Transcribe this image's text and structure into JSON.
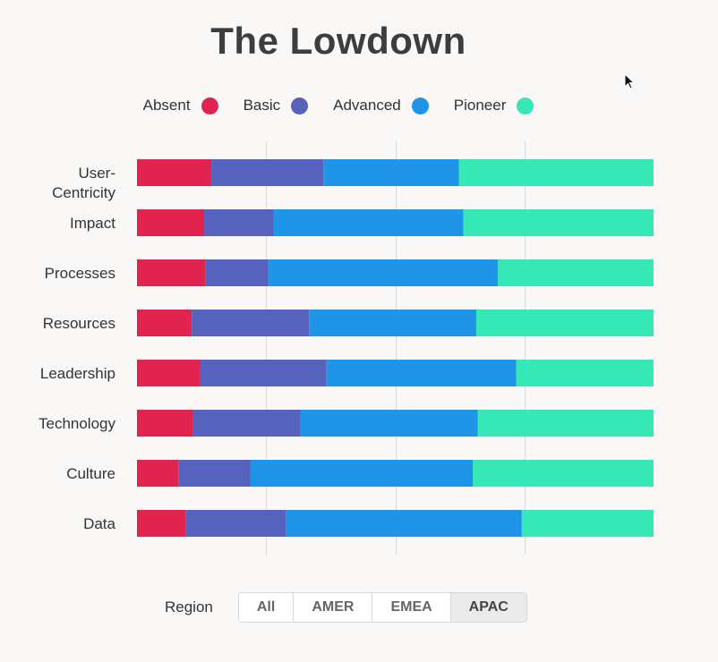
{
  "title": "The Lowdown",
  "legend": [
    {
      "label": "Absent",
      "color": "#e0244f"
    },
    {
      "label": "Basic",
      "color": "#5762bd"
    },
    {
      "label": "Advanced",
      "color": "#1e95e6"
    },
    {
      "label": "Pioneer",
      "color": "#35e8b6"
    }
  ],
  "chart_data": {
    "type": "bar",
    "orientation": "horizontal",
    "stacked": true,
    "normalized": true,
    "categories": [
      "User-Centricity",
      "Impact",
      "Processes",
      "Resources",
      "Leadership",
      "Technology",
      "Culture",
      "Data"
    ],
    "category_lines": [
      [
        "User-",
        "Centricity"
      ],
      [
        "Impact"
      ],
      [
        "Processes"
      ],
      [
        "Resources"
      ],
      [
        "Leadership"
      ],
      [
        "Technology"
      ],
      [
        "Culture"
      ],
      [
        "Data"
      ]
    ],
    "series": [
      {
        "name": "Absent",
        "color": "#e0244f",
        "values": [
          14.4,
          13.0,
          13.3,
          10.6,
          12.3,
          10.9,
          8.1,
          9.5
        ]
      },
      {
        "name": "Basic",
        "color": "#5762bd",
        "values": [
          21.7,
          13.5,
          12.1,
          22.7,
          24.4,
          20.8,
          13.9,
          19.4
        ]
      },
      {
        "name": "Advanced",
        "color": "#1e95e6",
        "values": [
          26.2,
          36.7,
          44.5,
          32.4,
          36.7,
          34.3,
          43.0,
          45.6
        ]
      },
      {
        "name": "Pioneer",
        "color": "#35e8b6",
        "values": [
          37.7,
          36.8,
          30.1,
          34.3,
          26.6,
          34.0,
          35.0,
          25.5
        ]
      }
    ],
    "xlim": [
      0,
      100
    ],
    "gridlines": [
      25,
      50,
      75
    ],
    "grid": true,
    "legend_position": "top"
  },
  "region": {
    "label": "Region",
    "options": [
      "All",
      "AMER",
      "EMEA",
      "APAC"
    ],
    "selected": "APAC"
  }
}
